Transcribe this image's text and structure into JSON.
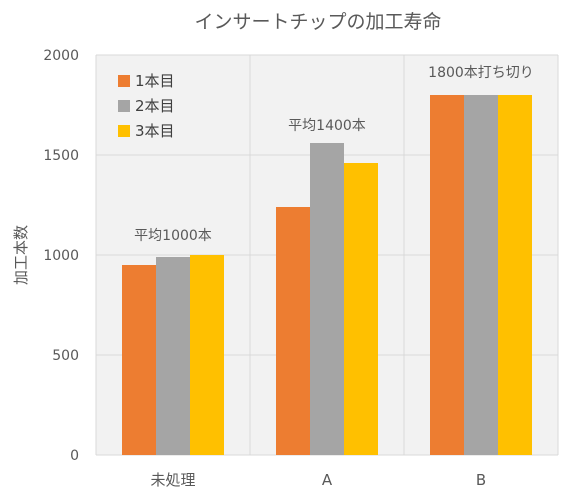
{
  "chart_data": {
    "type": "bar",
    "title": "インサートチップの加工寿命",
    "xlabel": "",
    "ylabel": "加工本数",
    "categories": [
      "未処理",
      "A",
      "B"
    ],
    "series": [
      {
        "name": "1本目",
        "color": "#ED7D31",
        "values": [
          950,
          1240,
          1800
        ]
      },
      {
        "name": "2本目",
        "color": "#A5A5A5",
        "values": [
          990,
          1560,
          1800
        ]
      },
      {
        "name": "3本目",
        "color": "#FFC000",
        "values": [
          1000,
          1460,
          1800
        ]
      }
    ],
    "ylim": [
      0,
      2000
    ],
    "yticks": [
      0,
      500,
      1000,
      1500,
      2000
    ],
    "grid": true,
    "legend": "top-left",
    "plot_background": "#F2F2F2",
    "annotations": [
      {
        "text": "平均1000本",
        "category": "未処理",
        "y": 1075
      },
      {
        "text": "平均1400本",
        "category": "A",
        "y": 1625
      },
      {
        "text": "1800本打ち切り",
        "category": "B",
        "y": 1890
      }
    ]
  }
}
